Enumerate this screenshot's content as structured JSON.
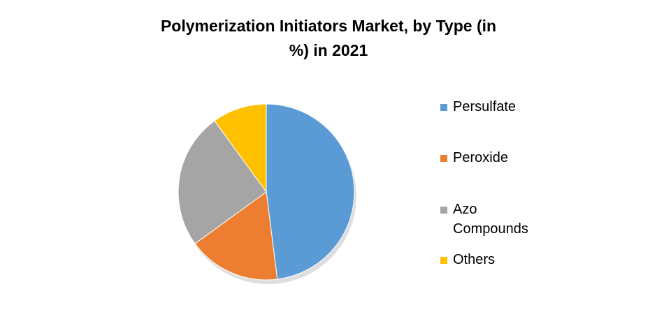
{
  "chart_data": {
    "type": "pie",
    "title": "Polymerization Initiators Market, by Type (in %) in 2021",
    "categories": [
      "Persulfate",
      "Peroxide",
      "Azo Compounds",
      "Others"
    ],
    "values": [
      48,
      17,
      25,
      10
    ],
    "colors": [
      "#5b9bd5",
      "#ed7d31",
      "#a5a5a5",
      "#ffc000"
    ]
  }
}
